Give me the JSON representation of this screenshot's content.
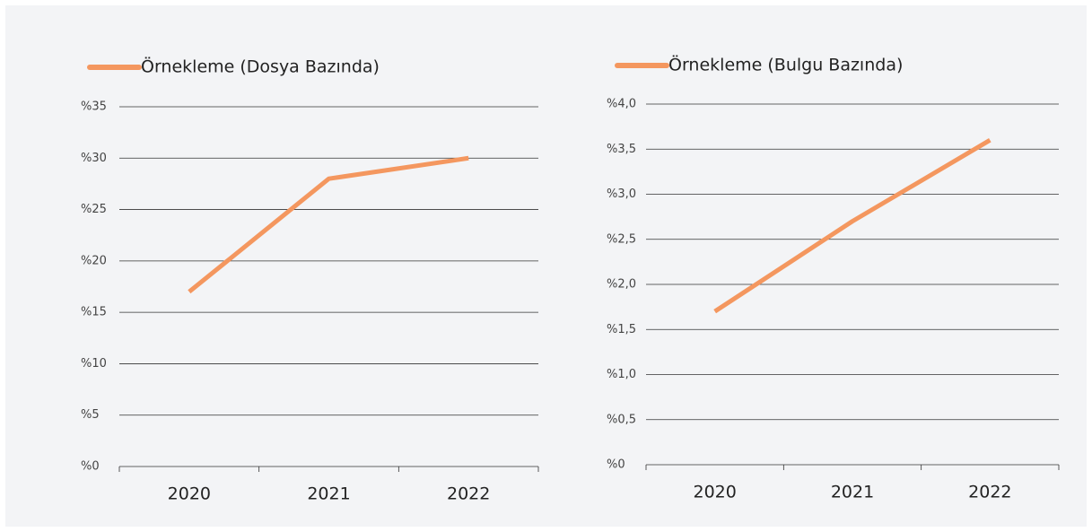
{
  "chart_data": [
    {
      "type": "line",
      "categories": [
        "2020",
        "2021",
        "2022"
      ],
      "series": [
        {
          "name": "Örnekleme (Dosya Bazında)",
          "color": "#f4975f",
          "values": [
            17,
            28,
            30
          ]
        }
      ],
      "ylim": [
        0,
        35
      ],
      "yticks": [
        {
          "value": 0,
          "label": "%0"
        },
        {
          "value": 5,
          "label": "%5"
        },
        {
          "value": 10,
          "label": "%10"
        },
        {
          "value": 15,
          "label": "%15"
        },
        {
          "value": 20,
          "label": "%20"
        },
        {
          "value": 25,
          "label": "%25"
        },
        {
          "value": 30,
          "label": "%30"
        },
        {
          "value": 35,
          "label": "%35"
        }
      ],
      "grid": true,
      "legend": "top-left"
    },
    {
      "type": "line",
      "categories": [
        "2020",
        "2021",
        "2022"
      ],
      "series": [
        {
          "name": "Örnekleme (Bulgu Bazında)",
          "color": "#f4975f",
          "values": [
            1.7,
            2.7,
            3.6
          ]
        }
      ],
      "ylim": [
        0,
        4
      ],
      "yticks": [
        {
          "value": 0,
          "label": "%0"
        },
        {
          "value": 0.5,
          "label": "%0,5"
        },
        {
          "value": 1,
          "label": "%1,0"
        },
        {
          "value": 1.5,
          "label": "%1,5"
        },
        {
          "value": 2,
          "label": "%2,0"
        },
        {
          "value": 2.5,
          "label": "%2,5"
        },
        {
          "value": 3,
          "label": "%3,0"
        },
        {
          "value": 3.5,
          "label": "%3,5"
        },
        {
          "value": 4,
          "label": "%4,0"
        }
      ],
      "grid": true,
      "legend": "top-left"
    }
  ]
}
